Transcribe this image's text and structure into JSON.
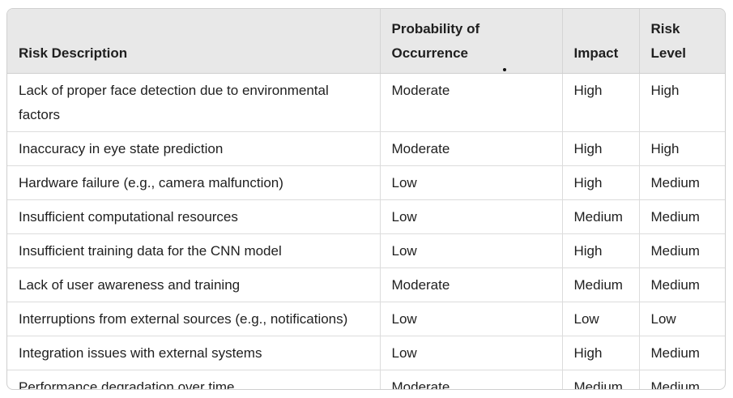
{
  "table": {
    "headers": [
      "Risk Description",
      "Probability of Occurrence",
      "Impact",
      "Risk Level"
    ],
    "rows": [
      [
        "Lack of proper face detection due to environmental factors",
        "Moderate",
        "High",
        "High"
      ],
      [
        "Inaccuracy in eye state prediction",
        "Moderate",
        "High",
        "High"
      ],
      [
        "Hardware failure (e.g., camera malfunction)",
        "Low",
        "High",
        "Medium"
      ],
      [
        "Insufficient computational resources",
        "Low",
        "Medium",
        "Medium"
      ],
      [
        "Insufficient training data for the CNN model",
        "Low",
        "High",
        "Medium"
      ],
      [
        "Lack of user awareness and training",
        "Moderate",
        "Medium",
        "Medium"
      ],
      [
        "Interruptions from external sources (e.g., notifications)",
        "Low",
        "Low",
        "Low"
      ],
      [
        "Integration issues with external systems",
        "Low",
        "High",
        "Medium"
      ],
      [
        "Performance degradation over time",
        "Moderate",
        "Medium",
        "Medium"
      ]
    ]
  },
  "colors": {
    "header_bg": "#e8e8e8",
    "border": "#dcdcdc",
    "text": "#1f1f1f"
  }
}
